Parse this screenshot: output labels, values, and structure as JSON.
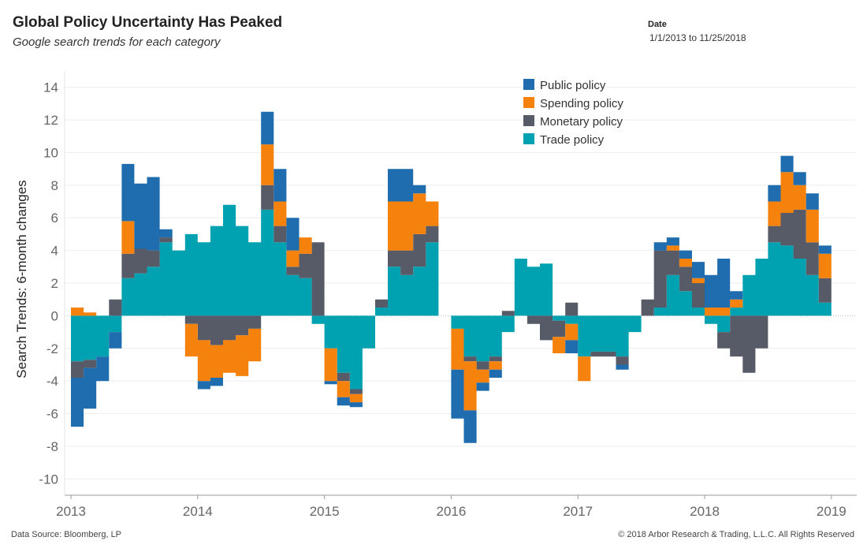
{
  "header": {
    "title": "Global Policy Uncertainty Has Peaked",
    "subtitle": "Google search trends for each category"
  },
  "filter": {
    "label": "Date",
    "value": "1/1/2013 to 11/25/2018"
  },
  "footer": {
    "source": "Data Source: Bloomberg, LP",
    "copyright": "© 2018 Arbor Research & Trading, L.L.C. All Rights Reserved"
  },
  "chart_data": {
    "type": "area",
    "stacked": true,
    "ylabel": "Search Trends: 6-month changes",
    "ylim": [
      -11,
      15
    ],
    "yticks": [
      14,
      12,
      10,
      8,
      6,
      4,
      2,
      0,
      -2,
      -4,
      -6,
      -8,
      -10
    ],
    "xlim": [
      2012.95,
      2019.2
    ],
    "xticks": [
      2013,
      2014,
      2015,
      2016,
      2017,
      2018,
      2019
    ],
    "grid": true,
    "legend_position": "top-right",
    "x": [
      2013.0,
      2013.1,
      2013.2,
      2013.3,
      2013.4,
      2013.5,
      2013.6,
      2013.7,
      2013.8,
      2013.9,
      2014.0,
      2014.1,
      2014.2,
      2014.3,
      2014.4,
      2014.5,
      2014.6,
      2014.7,
      2014.8,
      2014.9,
      2015.0,
      2015.1,
      2015.2,
      2015.3,
      2015.4,
      2015.5,
      2015.6,
      2015.7,
      2015.8,
      2015.9,
      2016.0,
      2016.1,
      2016.2,
      2016.3,
      2016.4,
      2016.5,
      2016.6,
      2016.7,
      2016.8,
      2016.9,
      2017.0,
      2017.1,
      2017.2,
      2017.3,
      2017.4,
      2017.5,
      2017.6,
      2017.7,
      2017.8,
      2017.9,
      2018.0,
      2018.1,
      2018.2,
      2018.3,
      2018.4,
      2018.5,
      2018.6,
      2018.7,
      2018.8,
      2018.9
    ],
    "series": [
      {
        "name": "Trade policy",
        "color": "#00A2B1",
        "values": [
          -2.8,
          -2.7,
          -2.5,
          -1.0,
          2.3,
          2.6,
          3.0,
          4.5,
          4.0,
          5.0,
          4.5,
          5.5,
          6.8,
          5.5,
          4.5,
          6.5,
          4.5,
          2.5,
          2.3,
          -0.5,
          -2.0,
          -3.5,
          -4.5,
          -2.0,
          0.5,
          3.0,
          2.5,
          3.0,
          4.5,
          0.0,
          -0.8,
          -2.5,
          -2.8,
          -2.5,
          -1.0,
          3.5,
          3.0,
          3.2,
          -0.3,
          -0.5,
          -2.5,
          -2.2,
          -2.2,
          -2.5,
          -1.0,
          0.0,
          0.5,
          2.5,
          1.5,
          0.5,
          -0.5,
          -1.0,
          0.5,
          2.5,
          3.5,
          4.5,
          4.3,
          3.5,
          2.5,
          0.8
        ]
      },
      {
        "name": "Monetary policy",
        "color": "#575B68",
        "values": [
          -1.0,
          -0.5,
          0.0,
          1.0,
          1.5,
          1.5,
          1.0,
          0.3,
          0.0,
          -0.5,
          -1.5,
          -1.8,
          -1.5,
          -1.2,
          -0.8,
          1.5,
          1.0,
          0.5,
          1.5,
          4.5,
          0.0,
          -0.5,
          -0.3,
          0.0,
          0.5,
          1.0,
          1.5,
          2.0,
          1.0,
          0.0,
          0.0,
          -0.3,
          -0.5,
          -0.3,
          0.3,
          0.0,
          -0.5,
          -1.5,
          -1.0,
          0.8,
          0.0,
          -0.3,
          -0.3,
          -0.5,
          0.0,
          1.0,
          3.5,
          1.5,
          1.5,
          1.5,
          0.0,
          -1.0,
          -2.5,
          -3.5,
          -2.0,
          1.0,
          2.0,
          3.0,
          2.0,
          1.5
        ]
      },
      {
        "name": "Spending policy",
        "color": "#F5820D",
        "values": [
          0.5,
          0.2,
          0.0,
          0.0,
          2.0,
          0.0,
          0.0,
          0.0,
          0.0,
          -2.0,
          -2.5,
          -2.0,
          -2.0,
          -2.5,
          -2.0,
          2.5,
          1.5,
          1.0,
          1.0,
          0.0,
          -2.0,
          -1.0,
          -0.5,
          0.0,
          0.0,
          3.0,
          3.0,
          2.5,
          1.5,
          0.0,
          -2.5,
          -3.0,
          -0.8,
          -0.5,
          0.0,
          0.0,
          0.0,
          0.0,
          -1.0,
          -1.0,
          -1.5,
          0.0,
          0.0,
          0.0,
          0.0,
          0.0,
          0.0,
          0.3,
          0.5,
          0.3,
          0.5,
          0.5,
          0.5,
          0.0,
          0.0,
          1.5,
          2.5,
          1.5,
          2.0,
          1.5
        ]
      },
      {
        "name": "Public policy",
        "color": "#1F6DAE",
        "values": [
          -3.0,
          -2.5,
          -1.5,
          -1.0,
          3.5,
          4.0,
          4.5,
          0.5,
          0.0,
          0.0,
          -0.5,
          -0.5,
          0.0,
          0.0,
          0.0,
          2.0,
          2.0,
          2.0,
          0.0,
          0.0,
          -0.2,
          -0.5,
          -0.3,
          0.0,
          0.0,
          2.0,
          2.0,
          0.5,
          0.0,
          0.0,
          -3.0,
          -2.0,
          -0.5,
          -0.5,
          0.0,
          0.0,
          0.0,
          0.0,
          0.0,
          -0.8,
          0.0,
          0.0,
          0.0,
          -0.3,
          0.0,
          0.0,
          0.5,
          0.5,
          0.5,
          1.0,
          2.0,
          3.0,
          0.5,
          0.0,
          0.0,
          1.0,
          1.0,
          0.8,
          1.0,
          0.5
        ]
      }
    ],
    "legend_order": [
      "Public policy",
      "Spending policy",
      "Monetary policy",
      "Trade policy"
    ]
  }
}
